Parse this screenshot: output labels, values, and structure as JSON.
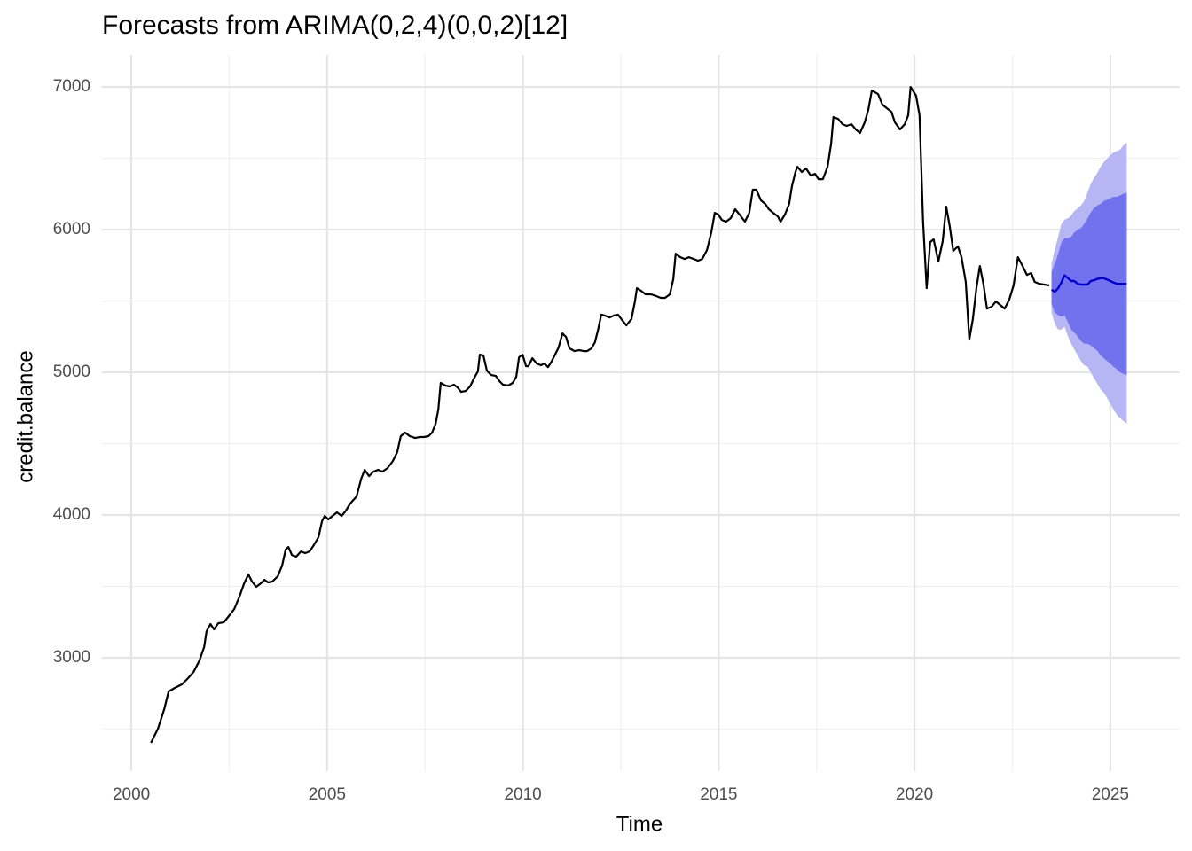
{
  "chart_data": {
    "type": "line",
    "title": "Forecasts from ARIMA(0,2,4)(0,0,2)[12]",
    "x_label": "Time",
    "y_label": "credit.balance",
    "xlim": [
      1999.25,
      2026.77
    ],
    "ylim": [
      2205,
      7224
    ],
    "xticks": [
      2000,
      2005,
      2010,
      2015,
      2020,
      2025
    ],
    "yticks": [
      3000,
      4000,
      5000,
      6000,
      7000
    ],
    "x_minor_ticks": [
      2002.5,
      2007.5,
      2012.5,
      2017.5,
      2022.5
    ],
    "y_minor_ticks": [
      2500,
      3500,
      4500,
      5500,
      6500
    ],
    "grid": true,
    "series": [
      {
        "color": "#000000",
        "x": [
          2000.5,
          2000.68,
          2000.84,
          2000.95,
          2001.11,
          2001.29,
          2001.45,
          2001.59,
          2001.74,
          2001.86,
          2001.92,
          2002.02,
          2002.11,
          2002.22,
          2002.36,
          2002.49,
          2002.63,
          2002.76,
          2002.88,
          2002.99,
          2003.08,
          2003.19,
          2003.31,
          2003.4,
          2003.49,
          2003.6,
          2003.74,
          2003.85,
          2003.94,
          2004.01,
          2004.1,
          2004.21,
          2004.33,
          2004.44,
          2004.55,
          2004.66,
          2004.78,
          2004.87,
          2004.94,
          2005.03,
          2005.14,
          2005.25,
          2005.37,
          2005.48,
          2005.59,
          2005.75,
          2005.87,
          2005.96,
          2006.07,
          2006.18,
          2006.3,
          2006.41,
          2006.54,
          2006.68,
          2006.79,
          2006.88,
          2006.99,
          2007.11,
          2007.25,
          2007.36,
          2007.47,
          2007.59,
          2007.68,
          2007.77,
          2007.84,
          2007.9,
          2008.02,
          2008.13,
          2008.24,
          2008.33,
          2008.42,
          2008.54,
          2008.65,
          2008.76,
          2008.85,
          2008.9,
          2008.99,
          2009.08,
          2009.19,
          2009.31,
          2009.4,
          2009.49,
          2009.62,
          2009.74,
          2009.83,
          2009.9,
          2009.99,
          2010.08,
          2010.14,
          2010.24,
          2010.35,
          2010.46,
          2010.55,
          2010.64,
          2010.73,
          2010.82,
          2010.91,
          2011.01,
          2011.1,
          2011.19,
          2011.32,
          2011.44,
          2011.55,
          2011.64,
          2011.75,
          2011.84,
          2011.93,
          2012.0,
          2012.09,
          2012.21,
          2012.32,
          2012.43,
          2012.55,
          2012.64,
          2012.77,
          2012.86,
          2012.91,
          2013.02,
          2013.13,
          2013.27,
          2013.41,
          2013.52,
          2013.63,
          2013.75,
          2013.84,
          2013.9,
          2014.02,
          2014.13,
          2014.24,
          2014.36,
          2014.47,
          2014.58,
          2014.7,
          2014.81,
          2014.9,
          2014.99,
          2015.08,
          2015.19,
          2015.31,
          2015.42,
          2015.53,
          2015.67,
          2015.78,
          2015.87,
          2015.96,
          2016.08,
          2016.19,
          2016.28,
          2016.39,
          2016.51,
          2016.58,
          2016.69,
          2016.8,
          2016.87,
          2016.96,
          2017.01,
          2017.12,
          2017.23,
          2017.35,
          2017.46,
          2017.55,
          2017.66,
          2017.78,
          2017.87,
          2017.93,
          2018.05,
          2018.16,
          2018.27,
          2018.39,
          2018.5,
          2018.61,
          2018.73,
          2018.82,
          2018.91,
          2019.07,
          2019.18,
          2019.29,
          2019.41,
          2019.5,
          2019.63,
          2019.75,
          2019.84,
          2019.9,
          2020.04,
          2020.13,
          2020.22,
          2020.31,
          2020.4,
          2020.49,
          2020.61,
          2020.72,
          2020.81,
          2020.9,
          2020.99,
          2021.11,
          2021.2,
          2021.31,
          2021.4,
          2021.49,
          2021.58,
          2021.67,
          2021.76,
          2021.85,
          2021.97,
          2022.08,
          2022.19,
          2022.3,
          2022.42,
          2022.53,
          2022.64,
          2022.76,
          2022.87,
          2022.98,
          2023.07,
          2023.19,
          2023.44
        ],
        "values": [
          2404,
          2503,
          2640,
          2764,
          2789,
          2814,
          2857,
          2901,
          2981,
          3075,
          3186,
          3236,
          3199,
          3242,
          3248,
          3292,
          3342,
          3429,
          3522,
          3584,
          3534,
          3497,
          3522,
          3547,
          3528,
          3534,
          3571,
          3646,
          3758,
          3776,
          3720,
          3708,
          3745,
          3733,
          3745,
          3789,
          3845,
          3957,
          3994,
          3969,
          3994,
          4019,
          3994,
          4031,
          4081,
          4130,
          4255,
          4317,
          4273,
          4304,
          4317,
          4304,
          4329,
          4379,
          4441,
          4553,
          4578,
          4553,
          4540,
          4547,
          4547,
          4553,
          4578,
          4640,
          4739,
          4926,
          4907,
          4901,
          4913,
          4894,
          4863,
          4870,
          4901,
          4963,
          5006,
          5124,
          5118,
          5012,
          4981,
          4975,
          4938,
          4913,
          4907,
          4926,
          4969,
          5106,
          5124,
          5043,
          5043,
          5099,
          5062,
          5050,
          5062,
          5037,
          5075,
          5124,
          5174,
          5273,
          5248,
          5168,
          5149,
          5155,
          5149,
          5149,
          5168,
          5211,
          5311,
          5404,
          5398,
          5385,
          5398,
          5404,
          5360,
          5329,
          5373,
          5497,
          5590,
          5571,
          5547,
          5547,
          5534,
          5522,
          5522,
          5547,
          5652,
          5832,
          5807,
          5795,
          5807,
          5795,
          5783,
          5795,
          5857,
          5981,
          6118,
          6106,
          6068,
          6056,
          6081,
          6143,
          6106,
          6056,
          6118,
          6280,
          6280,
          6205,
          6180,
          6143,
          6118,
          6093,
          6056,
          6106,
          6180,
          6304,
          6404,
          6441,
          6404,
          6429,
          6379,
          6391,
          6354,
          6354,
          6441,
          6602,
          6789,
          6776,
          6739,
          6727,
          6739,
          6702,
          6677,
          6752,
          6839,
          6975,
          6950,
          6876,
          6851,
          6826,
          6752,
          6702,
          6739,
          6801,
          7000,
          6938,
          6801,
          6056,
          5590,
          5913,
          5932,
          5776,
          5919,
          6161,
          6025,
          5851,
          5882,
          5807,
          5634,
          5230,
          5373,
          5590,
          5745,
          5621,
          5447,
          5460,
          5497,
          5472,
          5447,
          5509,
          5609,
          5807,
          5745,
          5683,
          5696,
          5634,
          5621,
          5609
        ]
      }
    ],
    "forecast": {
      "x": [
        2023.5,
        2023.58,
        2023.67,
        2023.75,
        2023.83,
        2023.92,
        2024,
        2024.08,
        2024.17,
        2024.25,
        2024.33,
        2024.42,
        2024.5,
        2024.58,
        2024.67,
        2024.75,
        2024.83,
        2024.92,
        2025,
        2025.08,
        2025.17,
        2025.25,
        2025.33,
        2025.42
      ],
      "color": "#0000cc",
      "mean": [
        5580,
        5565,
        5590,
        5630,
        5680,
        5660,
        5640,
        5640,
        5620,
        5615,
        5615,
        5615,
        5640,
        5645,
        5655,
        5660,
        5660,
        5650,
        5640,
        5630,
        5620,
        5620,
        5620,
        5620
      ],
      "bands": [
        {
          "color": "#b6b6f5",
          "lower": [
            5420,
            5340,
            5300,
            5300,
            5320,
            5250,
            5200,
            5160,
            5120,
            5080,
            5050,
            5040,
            5000,
            4960,
            4920,
            4880,
            4860,
            4820,
            4780,
            4740,
            4700,
            4680,
            4660,
            4640
          ],
          "upper": [
            5760,
            5860,
            5950,
            6040,
            6070,
            6080,
            6100,
            6130,
            6150,
            6170,
            6200,
            6260,
            6320,
            6360,
            6400,
            6440,
            6470,
            6500,
            6520,
            6540,
            6550,
            6560,
            6590,
            6610
          ]
        },
        {
          "color": "#7272ef",
          "lower": [
            5480,
            5420,
            5400,
            5390,
            5400,
            5350,
            5300,
            5280,
            5250,
            5220,
            5200,
            5200,
            5190,
            5170,
            5150,
            5120,
            5100,
            5080,
            5060,
            5040,
            5020,
            5000,
            4990,
            4980
          ],
          "upper": [
            5700,
            5760,
            5830,
            5910,
            5940,
            5940,
            5950,
            5980,
            6000,
            6010,
            6040,
            6080,
            6120,
            6150,
            6170,
            6180,
            6200,
            6210,
            6220,
            6230,
            6230,
            6240,
            6250,
            6260
          ]
        }
      ]
    }
  }
}
